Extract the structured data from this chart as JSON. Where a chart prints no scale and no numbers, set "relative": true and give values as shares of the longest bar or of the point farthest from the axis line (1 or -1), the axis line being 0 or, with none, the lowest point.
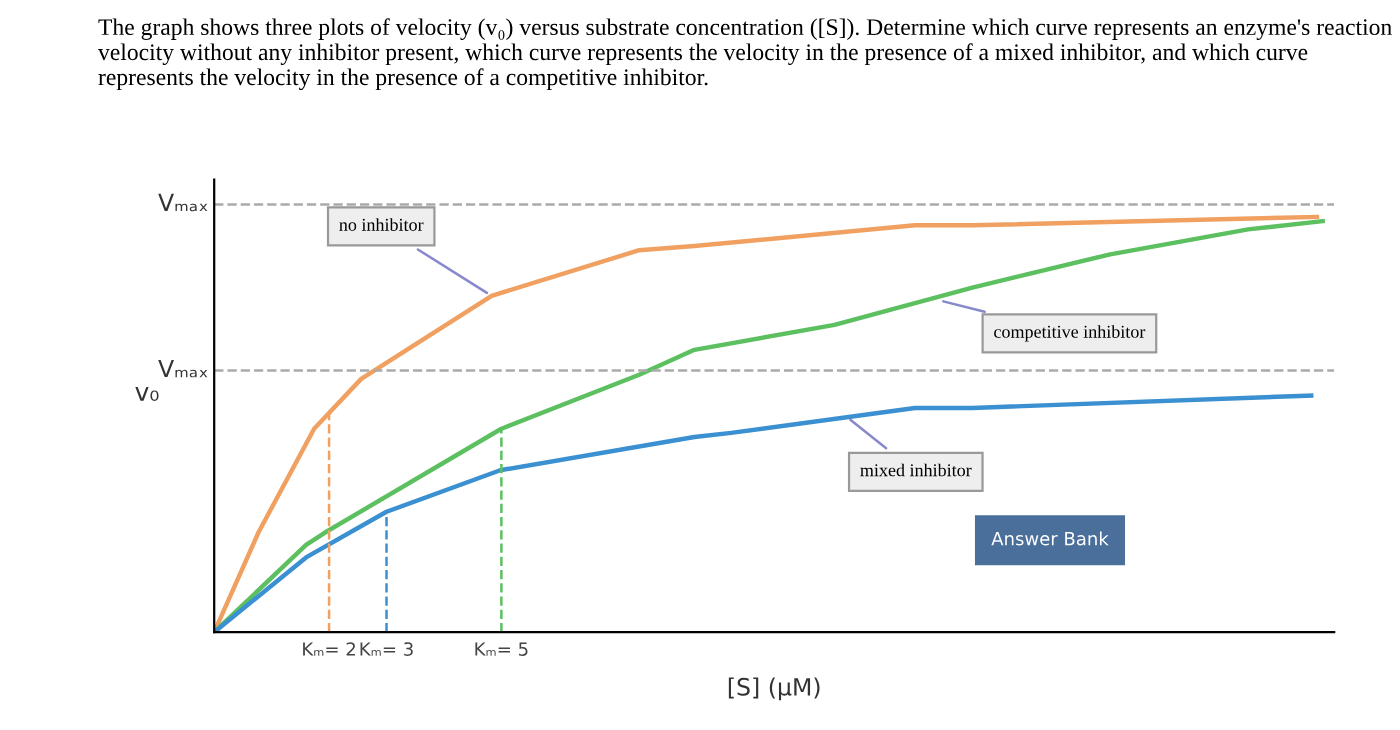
{
  "chart_data": {
    "type": "line",
    "relative": true,
    "title": "The graph shows three plots of velocity (v₀) versus substrate concentration ([S]). Determine which curve represents an enzyme's reaction velocity without any inhibitor present, which curve represents the velocity in the presence of a mixed inhibitor, and which curve represents the velocity in the presence of a competitive inhibitor.",
    "xlabel": "[S] (μM)",
    "ylabel": "v₀",
    "xlim": [
      0,
      19.5
    ],
    "xticks": [
      {
        "value": 2,
        "label": "Kₘ= 2"
      },
      {
        "value": 3,
        "label": "Kₘ= 3"
      },
      {
        "value": 5,
        "label": "Kₘ= 5"
      }
    ],
    "series": [
      {
        "color": "#f0a060",
        "x": [
          0,
          0.77,
          1.74,
          2.56,
          4.83,
          7.4,
          8.36,
          12.2,
          13.2,
          19.2
        ],
        "values": [
          0,
          0.24,
          0.49,
          0.61,
          0.81,
          0.92,
          0.93,
          0.98,
          0.98,
          1.0
        ]
      },
      {
        "color": "#5cc060",
        "x": [
          0,
          1.6,
          1.93,
          5,
          7.4,
          8.36,
          10.8,
          13.2,
          15.6,
          18.0,
          19.3
        ],
        "values": [
          0,
          0.21,
          0.24,
          0.49,
          0.62,
          0.68,
          0.74,
          0.83,
          0.91,
          0.97,
          0.99
        ]
      },
      {
        "color": "#3a90d0",
        "x": [
          0,
          1.6,
          3,
          4.98,
          8.36,
          9.0,
          12.2,
          13.2,
          19.1
        ],
        "values": [
          0,
          0.18,
          0.29,
          0.39,
          0.47,
          0.48,
          0.54,
          0.54,
          0.57
        ]
      }
    ],
    "ref_lines": [
      {
        "axis": "y",
        "value": 1.03,
        "label": "Vₘₐₓ",
        "color": "#aaaaaa",
        "line_style": "dashed"
      },
      {
        "axis": "y",
        "value": 0.63,
        "label": "Vₘₐₓ",
        "color": "#aaaaaa",
        "line_style": "dashed"
      },
      {
        "axis": "x",
        "value": 2,
        "color": "#f0a060",
        "line_style": "dashed"
      },
      {
        "axis": "x",
        "value": 3,
        "color": "#3a90d0",
        "line_style": "dashed"
      },
      {
        "axis": "x",
        "value": 5,
        "color": "#5cc060",
        "line_style": "dashed"
      }
    ],
    "annotations": [
      {
        "text": "no inhibitor",
        "x": 4.83,
        "y": 0.81
      },
      {
        "text": "competitive inhibitor",
        "x": 12.6,
        "y": 0.8
      },
      {
        "text": "mixed inhibitor",
        "x": 11.0,
        "y": 0.52
      },
      "Answer Bank"
    ],
    "grid": false
  }
}
